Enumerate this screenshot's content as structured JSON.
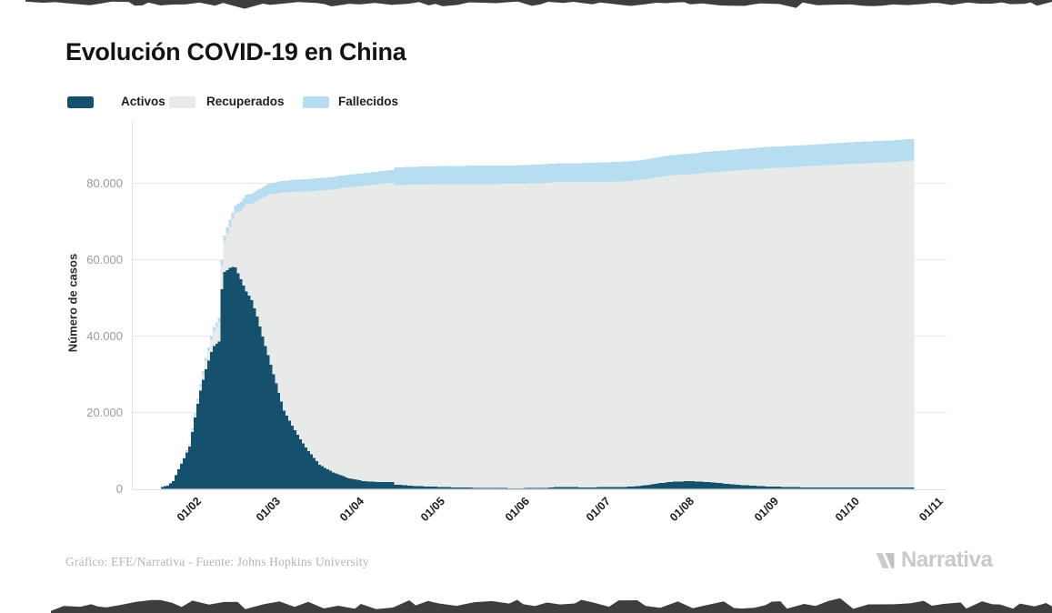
{
  "header": {
    "title": "Evolución COVID-19 en China"
  },
  "legend": {
    "items": [
      {
        "label": "Activos",
        "color": "#15506C"
      },
      {
        "label": "Recuperados",
        "color": "#E8E9E9"
      },
      {
        "label": "Fallecidos",
        "color": "#B7DDF0"
      }
    ]
  },
  "footer": {
    "credit": "Gráfico: EFE/Narrativa - Fuente: Johns Hopkins University"
  },
  "branding": {
    "name": "Narrativa",
    "logo_icon": "narrativa-n-mark"
  },
  "colors": {
    "activos": "#15506C",
    "recuperados": "#E8E9E9",
    "fallecidos": "#B7DDF0",
    "grid": "#e7e7e7",
    "axis_line": "#e0e0e0",
    "torn_edge": "#3e3e3e",
    "tick_text": "#9c9c9c",
    "title_text": "#131313"
  },
  "chart_data": {
    "type": "area",
    "stacked": true,
    "render_style": "daily-stacked-bars",
    "title": "Evolución COVID-19 en China",
    "xlabel": "",
    "ylabel": "Número de casos",
    "grid": "horizontal",
    "legend_position": "top-left",
    "series_names": [
      "Activos",
      "Recuperados",
      "Fallecidos"
    ],
    "x_axis": {
      "start_date": "22/01/2020",
      "ticks": [
        {
          "label": "01/02",
          "day": 10
        },
        {
          "label": "01/03",
          "day": 39
        },
        {
          "label": "01/04",
          "day": 70
        },
        {
          "label": "01/05",
          "day": 100
        },
        {
          "label": "01/06",
          "day": 131
        },
        {
          "label": "01/07",
          "day": 161
        },
        {
          "label": "01/08",
          "day": 192
        },
        {
          "label": "01/09",
          "day": 223
        },
        {
          "label": "01/10",
          "day": 253
        },
        {
          "label": "01/11",
          "day": 284
        }
      ]
    },
    "y_axis": {
      "range": [
        0,
        95000
      ],
      "ticks": [
        {
          "label": "80.000",
          "value": 80000
        },
        {
          "label": "60.000",
          "value": 60000
        },
        {
          "label": "40.000",
          "value": 40000
        },
        {
          "label": "20.000",
          "value": 20000
        },
        {
          "label": "0",
          "value": 0
        }
      ]
    },
    "keypoints_format": [
      "day_index",
      "date_dd_mm",
      "activos",
      "recuperados",
      "fallecidos"
    ],
    "keypoints": [
      [
        0,
        "22/01",
        503,
        28,
        17
      ],
      [
        2,
        "24/01",
        852,
        36,
        26
      ],
      [
        4,
        "26/01",
        1979,
        49,
        56
      ],
      [
        6,
        "28/01",
        5126,
        101,
        131
      ],
      [
        8,
        "30/01",
        7977,
        135,
        171
      ],
      [
        10,
        "01/02",
        11094,
        538,
        259
      ],
      [
        12,
        "03/02",
        18686,
        604,
        426
      ],
      [
        14,
        "05/02",
        25724,
        1153,
        563
      ],
      [
        16,
        "07/02",
        31343,
        2050,
        717
      ],
      [
        18,
        "09/02",
        35799,
        3219,
        811
      ],
      [
        19,
        "10/02",
        37341,
        3996,
        1017
      ],
      [
        21,
        "12/02",
        38562,
        5082,
        1115
      ],
      [
        22,
        "13/02",
        52309,
        6217,
        1369
      ],
      [
        23,
        "14/02",
        56739,
        8096,
        1523
      ],
      [
        25,
        "16/02",
        57878,
        10865,
        1770
      ],
      [
        26,
        "17/02",
        58106,
        12455,
        1873
      ],
      [
        27,
        "18/02",
        58001,
        14206,
        2004
      ],
      [
        28,
        "19/02",
        56399,
        16102,
        2118
      ],
      [
        29,
        "20/02",
        54827,
        18014,
        2236
      ],
      [
        31,
        "22/02",
        51673,
        22886,
        2442
      ],
      [
        33,
        "24/02",
        49419,
        25227,
        2595
      ],
      [
        35,
        "26/02",
        45131,
        30320,
        2715
      ],
      [
        37,
        "28/02",
        39850,
        36287,
        2791
      ],
      [
        39,
        "01/03",
        34941,
        42118,
        2873
      ],
      [
        41,
        "03/03",
        30004,
        47204,
        2943
      ],
      [
        43,
        "05/03",
        25125,
        52292,
        3013
      ],
      [
        45,
        "07/03",
        20517,
        57065,
        3070
      ],
      [
        48,
        "10/03",
        16600,
        61129,
        3158
      ],
      [
        51,
        "13/03",
        13000,
        64811,
        3180
      ],
      [
        53,
        "15/03",
        10827,
        67017,
        3204
      ],
      [
        58,
        "20/03",
        6310,
        71740,
        3255
      ],
      [
        63,
        "25/03",
        4325,
        74051,
        3285
      ],
      [
        69,
        "31/03",
        2764,
        76206,
        3309
      ],
      [
        74,
        "05/04",
        2062,
        77207,
        3333
      ],
      [
        79,
        "10/04",
        1794,
        77877,
        3343
      ],
      [
        85,
        "16/04",
        1770,
        78377,
        3346
      ],
      [
        86,
        "17/04",
        1115,
        78398,
        4636
      ],
      [
        94,
        "25/04",
        703,
        78955,
        4680
      ],
      [
        100,
        "01/05",
        560,
        79140,
        4750
      ],
      [
        110,
        "11/05",
        340,
        79420,
        4800
      ],
      [
        120,
        "21/05",
        240,
        79560,
        4850
      ],
      [
        131,
        "01/06",
        150,
        79700,
        4850
      ],
      [
        141,
        "11/06",
        250,
        79800,
        4900
      ],
      [
        146,
        "16/06",
        480,
        79850,
        4900
      ],
      [
        151,
        "21/06",
        430,
        79900,
        4950
      ],
      [
        156,
        "26/06",
        400,
        79950,
        4950
      ],
      [
        161,
        "01/07",
        420,
        79900,
        5100
      ],
      [
        171,
        "11/07",
        500,
        80000,
        5200
      ],
      [
        176,
        "16/07",
        700,
        80100,
        5200
      ],
      [
        181,
        "21/07",
        1200,
        80150,
        5250
      ],
      [
        186,
        "26/07",
        1700,
        80200,
        5300
      ],
      [
        191,
        "31/07",
        1950,
        80300,
        5300
      ],
      [
        196,
        "05/08",
        2000,
        80400,
        5400
      ],
      [
        201,
        "10/08",
        1800,
        80950,
        5500
      ],
      [
        206,
        "15/08",
        1500,
        81500,
        5500
      ],
      [
        211,
        "20/08",
        1150,
        82150,
        5500
      ],
      [
        216,
        "25/08",
        900,
        82650,
        5500
      ],
      [
        223,
        "01/09",
        650,
        83250,
        5600
      ],
      [
        232,
        "10/09",
        450,
        83750,
        5600
      ],
      [
        242,
        "20/09",
        350,
        84250,
        5600
      ],
      [
        253,
        "01/10",
        300,
        84700,
        5700
      ],
      [
        262,
        "10/10",
        350,
        84950,
        5700
      ],
      [
        269,
        "17/10",
        350,
        85150,
        5700
      ],
      [
        277,
        "25/10",
        400,
        85500,
        5700
      ]
    ]
  }
}
